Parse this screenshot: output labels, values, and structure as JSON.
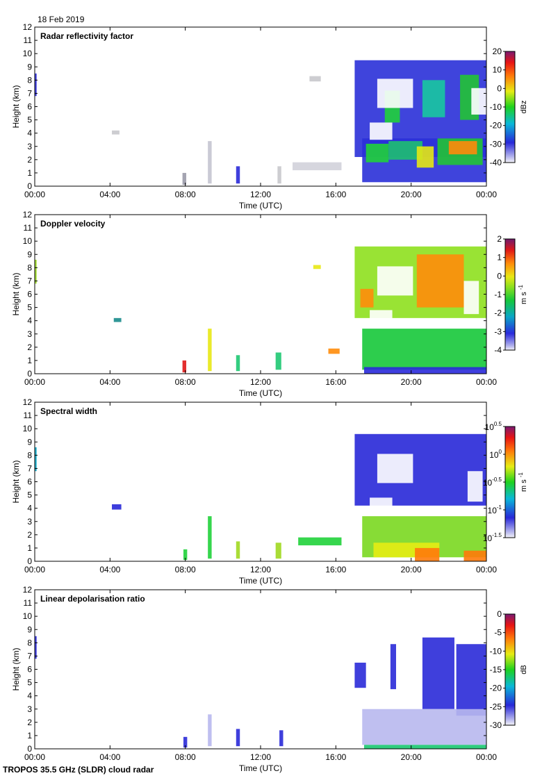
{
  "header": {
    "date": "18 Feb 2019"
  },
  "footer": {
    "instrument": "TROPOS 35.5 GHz (SLDR) cloud radar"
  },
  "chart_data": [
    {
      "type": "heatmap",
      "title": "Radar reflectivity factor",
      "xlabel": "Time (UTC)",
      "ylabel": "Height (km)",
      "x_ticks": [
        "00:00",
        "04:00",
        "08:00",
        "12:00",
        "16:00",
        "20:00",
        "00:00"
      ],
      "x_range_hours": [
        0,
        24
      ],
      "y_ticks": [
        0,
        1,
        2,
        3,
        4,
        5,
        6,
        7,
        8,
        9,
        10,
        11,
        12
      ],
      "ylim": [
        0,
        12
      ],
      "colorbar": {
        "unit": "dBz",
        "ticks": [
          "20",
          "10",
          "0",
          "-10",
          "-20",
          "-30",
          "-40"
        ],
        "range": [
          -40,
          20
        ]
      }
    },
    {
      "type": "heatmap",
      "title": "Doppler velocity",
      "xlabel": "Time (UTC)",
      "ylabel": "Height (km)",
      "x_ticks": [
        "00:00",
        "04:00",
        "08:00",
        "12:00",
        "16:00",
        "20:00",
        "00:00"
      ],
      "x_range_hours": [
        0,
        24
      ],
      "y_ticks": [
        0,
        1,
        2,
        3,
        4,
        5,
        6,
        7,
        8,
        9,
        10,
        11,
        12
      ],
      "ylim": [
        0,
        12
      ],
      "colorbar": {
        "unit_base": "m s",
        "unit_exp": "-1",
        "ticks": [
          "2",
          "1",
          "0",
          "-1",
          "-2",
          "-3",
          "-4"
        ],
        "range": [
          -4,
          2
        ]
      }
    },
    {
      "type": "heatmap",
      "title": "Spectral width",
      "xlabel": "Time (UTC)",
      "ylabel": "Height (km)",
      "x_ticks": [
        "00:00",
        "04:00",
        "08:00",
        "12:00",
        "16:00",
        "20:00",
        "00:00"
      ],
      "x_range_hours": [
        0,
        24
      ],
      "y_ticks": [
        0,
        1,
        2,
        3,
        4,
        5,
        6,
        7,
        8,
        9,
        10,
        11,
        12
      ],
      "ylim": [
        0,
        12
      ],
      "colorbar": {
        "unit_base": "m s",
        "unit_exp": "-1",
        "ticks_log": [
          {
            "base": "10",
            "exp": "0.5"
          },
          {
            "base": "10",
            "exp": "0"
          },
          {
            "base": "10",
            "exp": "-0.5"
          },
          {
            "base": "10",
            "exp": "-1"
          },
          {
            "base": "10",
            "exp": "-1.5"
          }
        ],
        "range": [
          -1.5,
          0.5
        ]
      }
    },
    {
      "type": "heatmap",
      "title": "Linear depolarisation ratio",
      "xlabel": "Time (UTC)",
      "ylabel": "Height (km)",
      "x_ticks": [
        "00:00",
        "04:00",
        "08:00",
        "12:00",
        "16:00",
        "20:00",
        "00:00"
      ],
      "x_range_hours": [
        0,
        24
      ],
      "y_ticks": [
        0,
        1,
        2,
        3,
        4,
        5,
        6,
        7,
        8,
        9,
        10,
        11,
        12
      ],
      "ylim": [
        0,
        12
      ],
      "colorbar": {
        "unit": "dB",
        "ticks": [
          "0",
          "-5",
          "-10",
          "-15",
          "-20",
          "-25",
          "-30"
        ],
        "range": [
          -30,
          0
        ]
      }
    }
  ]
}
